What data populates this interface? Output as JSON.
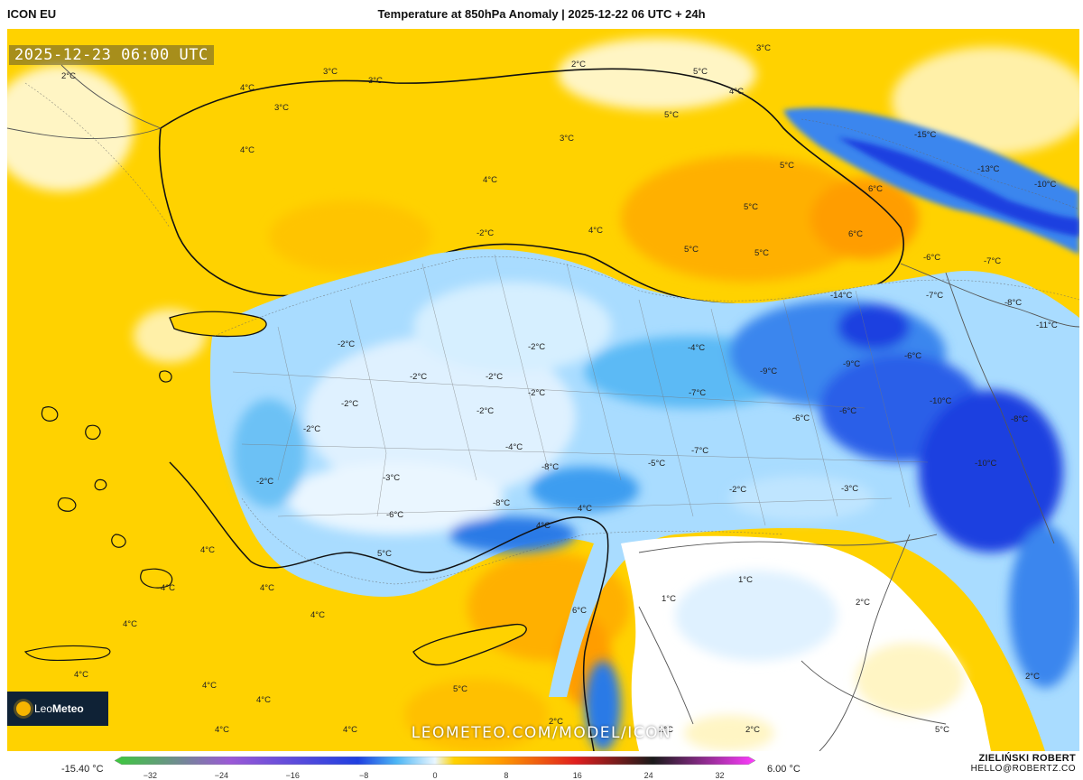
{
  "header": {
    "model": "ICON EU",
    "title": "Temperature at 850hPa Anomaly | 2025-12-22 06 UTC + 24h"
  },
  "map": {
    "valid_time": "2025-12-23 06:00 UTC",
    "watermark": "LEOMETEO.COM/MODEL/ICON",
    "logo_text_a": "Leo",
    "logo_text_b": "Meteo",
    "labels": [
      {
        "text": "2°C"
      },
      {
        "text": "3°C"
      },
      {
        "text": "3°C"
      },
      {
        "text": "4°C"
      },
      {
        "text": "3°C"
      },
      {
        "text": "2°C"
      },
      {
        "text": "5°C"
      },
      {
        "text": "3°C"
      },
      {
        "text": "4°C"
      },
      {
        "text": "5°C"
      },
      {
        "text": "-15°C"
      },
      {
        "text": "-13°C"
      },
      {
        "text": "-10°C"
      },
      {
        "text": "3°C"
      },
      {
        "text": "4°C"
      },
      {
        "text": "4°C"
      },
      {
        "text": "5°C"
      },
      {
        "text": "6°C"
      },
      {
        "text": "5°C"
      },
      {
        "text": "6°C"
      },
      {
        "text": "4°C"
      },
      {
        "text": "5°C"
      },
      {
        "text": "5°C"
      },
      {
        "text": "-2°C"
      },
      {
        "text": "-6°C"
      },
      {
        "text": "-7°C"
      },
      {
        "text": "-14°C"
      },
      {
        "text": "-7°C"
      },
      {
        "text": "-8°C"
      },
      {
        "text": "-11°C"
      },
      {
        "text": "-2°C"
      },
      {
        "text": "-2°C"
      },
      {
        "text": "-2°C"
      },
      {
        "text": "-2°C"
      },
      {
        "text": "-4°C"
      },
      {
        "text": "-9°C"
      },
      {
        "text": "-9°C"
      },
      {
        "text": "-6°C"
      },
      {
        "text": "-10°C"
      },
      {
        "text": "-8°C"
      },
      {
        "text": "-2°C"
      },
      {
        "text": "-2°C"
      },
      {
        "text": "-2°C"
      },
      {
        "text": "-7°C"
      },
      {
        "text": "-6°C"
      },
      {
        "text": "-6°C"
      },
      {
        "text": "-7°C"
      },
      {
        "text": "-5°C"
      },
      {
        "text": "-10°C"
      },
      {
        "text": "-2°C"
      },
      {
        "text": "-3°C"
      },
      {
        "text": "-4°C"
      },
      {
        "text": "-2°C"
      },
      {
        "text": "-8°C"
      },
      {
        "text": "-6°C"
      },
      {
        "text": "-8°C"
      },
      {
        "text": "-2°C"
      },
      {
        "text": "-3°C"
      },
      {
        "text": "4°C"
      },
      {
        "text": "5°C"
      },
      {
        "text": "4°C"
      },
      {
        "text": "1°C"
      },
      {
        "text": "1°C"
      },
      {
        "text": "2°C"
      },
      {
        "text": "6°C"
      },
      {
        "text": "4°C"
      },
      {
        "text": "4°C"
      },
      {
        "text": "4°C"
      },
      {
        "text": "4°C"
      },
      {
        "text": "4°C"
      },
      {
        "text": "5°C"
      },
      {
        "text": "2°C"
      },
      {
        "text": "2°C"
      },
      {
        "text": "5°C"
      },
      {
        "text": "2°C"
      },
      {
        "text": "4°C"
      },
      {
        "text": "4°C"
      },
      {
        "text": "4°C"
      },
      {
        "text": "4°C"
      },
      {
        "text": "4°C"
      },
      {
        "text": "2°C"
      }
    ]
  },
  "legend": {
    "min_label": "-15.40 °C",
    "max_label": "6.00 °C",
    "ticks": [
      "−32",
      "−24",
      "−16",
      "−8",
      "0",
      "8",
      "16",
      "24",
      "32"
    ],
    "scale_min": -36,
    "scale_max": 36,
    "tick_values": [
      -32,
      -24,
      -16,
      -8,
      0,
      8,
      16,
      24,
      32
    ],
    "colors": {
      "green": "#3cc93c",
      "violet": "#9b59d6",
      "blue": "#1f3fe0",
      "cyan": "#4cb6f5",
      "pale": "#eaf6ff",
      "yellow": "#ffd200",
      "orange": "#ff9d00",
      "red": "#e01e1e",
      "black": "#1a1a1a",
      "magenta": "#ff3cff"
    }
  },
  "author": {
    "name": "ZIELIŃSKI ROBERT",
    "email": "HELLO@ROBERTZ.CO"
  }
}
